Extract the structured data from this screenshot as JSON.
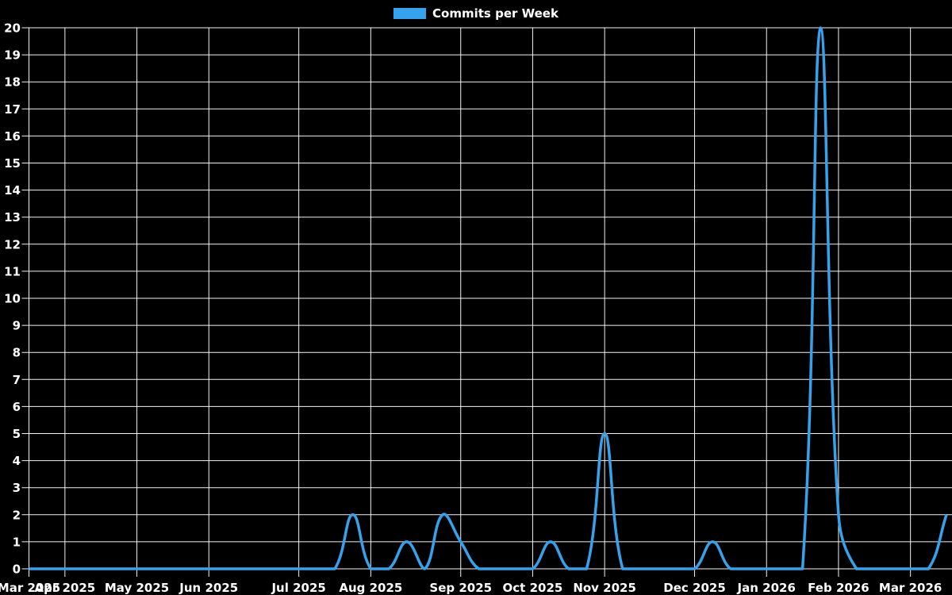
{
  "page": {
    "background_color": "#000000"
  },
  "legend": {
    "label": "Commits per Week",
    "color": "#36a2eb",
    "position": "top-center"
  },
  "chart_data": {
    "type": "line",
    "title": "Commits per Week",
    "xlabel": "",
    "ylabel": "",
    "ylim": [
      0,
      20
    ],
    "y_tick_step": 1,
    "grid": true,
    "grid_color": "#ffffff",
    "text_color": "#ffffff",
    "background_color": "#000000",
    "line_tension": 0.4,
    "line_width": 3.5,
    "legend_position": "top-center",
    "x": [
      "2025-03-23",
      "2025-03-30",
      "2025-04-06",
      "2025-04-13",
      "2025-04-20",
      "2025-04-27",
      "2025-05-04",
      "2025-05-11",
      "2025-05-18",
      "2025-05-25",
      "2025-06-01",
      "2025-06-08",
      "2025-06-15",
      "2025-06-22",
      "2025-06-29",
      "2025-07-06",
      "2025-07-13",
      "2025-07-20",
      "2025-07-27",
      "2025-08-03",
      "2025-08-10",
      "2025-08-17",
      "2025-08-24",
      "2025-08-31",
      "2025-09-07",
      "2025-09-14",
      "2025-09-21",
      "2025-09-28",
      "2025-10-05",
      "2025-10-12",
      "2025-10-19",
      "2025-10-26",
      "2025-11-02",
      "2025-11-09",
      "2025-11-16",
      "2025-11-23",
      "2025-11-30",
      "2025-12-07",
      "2025-12-14",
      "2025-12-21",
      "2025-12-28",
      "2026-01-04",
      "2026-01-11",
      "2026-01-18",
      "2026-01-25",
      "2026-02-01",
      "2026-02-08",
      "2026-02-15",
      "2026-02-22",
      "2026-03-01",
      "2026-03-08",
      "2026-03-15"
    ],
    "series": [
      {
        "name": "Commits per Week",
        "color": "#36a2eb",
        "values": [
          0,
          0,
          0,
          0,
          0,
          0,
          0,
          0,
          0,
          0,
          0,
          0,
          0,
          0,
          0,
          0,
          0,
          0,
          2,
          0,
          0,
          1,
          0,
          2,
          1,
          0,
          0,
          0,
          0,
          1,
          0,
          0,
          5,
          0,
          0,
          0,
          0,
          0,
          1,
          0,
          0,
          0,
          0,
          0,
          20,
          2,
          0,
          0,
          0,
          0,
          0,
          2
        ]
      }
    ],
    "x_ticks": [
      {
        "index": 0,
        "label": "Mar 2025"
      },
      {
        "index": 2,
        "label": "Apr 2025"
      },
      {
        "index": 6,
        "label": "May 2025"
      },
      {
        "index": 10,
        "label": "Jun 2025"
      },
      {
        "index": 15,
        "label": "Jul 2025"
      },
      {
        "index": 19,
        "label": "Aug 2025"
      },
      {
        "index": 24,
        "label": "Sep 2025"
      },
      {
        "index": 28,
        "label": "Oct 2025"
      },
      {
        "index": 32,
        "label": "Nov 2025"
      },
      {
        "index": 37,
        "label": "Dec 2025"
      },
      {
        "index": 41,
        "label": "Jan 2026"
      },
      {
        "index": 45,
        "label": "Feb 2026"
      },
      {
        "index": 49,
        "label": "Mar 2026"
      }
    ]
  }
}
